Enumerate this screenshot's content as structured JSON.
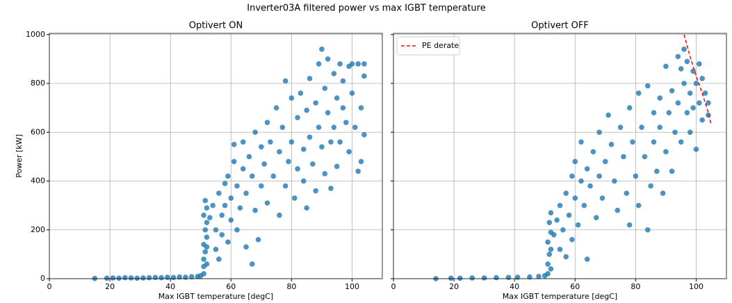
{
  "title": "Inverter03A filtered power vs max IGBT temperature",
  "chart_data": [
    {
      "type": "scatter",
      "title": "Optivert ON",
      "xlabel": "Max IGBT temperature [degC]",
      "ylabel": "Power [kW]",
      "xlim": [
        0,
        110
      ],
      "ylim": [
        0,
        1005
      ],
      "xticks": [
        0,
        20,
        40,
        60,
        80,
        100
      ],
      "yticks": [
        0,
        200,
        400,
        600,
        800,
        1000
      ],
      "grid": true,
      "series": [
        {
          "color": "#1f77b4",
          "x": [
            15,
            19,
            21,
            23,
            25,
            27,
            29,
            31,
            33,
            35,
            37,
            39,
            41,
            43,
            45,
            47,
            49,
            50,
            51,
            51,
            51,
            51.5,
            51,
            52,
            51.5,
            52,
            51,
            52,
            51.5,
            52,
            52,
            53,
            54,
            55,
            55,
            56,
            56,
            57,
            57,
            58,
            58,
            59,
            59,
            60,
            60,
            61,
            61,
            62,
            62,
            63,
            64,
            64,
            65,
            65,
            66,
            67,
            67,
            68,
            68,
            69,
            70,
            70,
            71,
            72,
            72,
            73,
            74,
            75,
            76,
            76,
            77,
            78,
            78,
            79,
            80,
            80,
            81,
            82,
            82,
            83,
            84,
            84,
            85,
            85,
            86,
            86,
            87,
            88,
            88,
            89,
            89,
            90,
            90,
            91,
            91,
            92,
            92,
            93,
            93,
            94,
            94,
            95,
            95,
            96,
            96,
            97,
            97,
            98,
            99,
            99,
            100,
            100,
            101,
            102,
            102,
            103,
            103,
            104,
            104,
            104
          ],
          "values": [
            1,
            2,
            3,
            2,
            4,
            3,
            2,
            3,
            4,
            5,
            4,
            6,
            5,
            7,
            6,
            8,
            9,
            12,
            20,
            50,
            80,
            110,
            140,
            170,
            200,
            230,
            260,
            290,
            320,
            60,
            130,
            250,
            300,
            200,
            120,
            350,
            80,
            260,
            180,
            390,
            300,
            150,
            420,
            240,
            330,
            480,
            550,
            380,
            200,
            290,
            450,
            560,
            130,
            350,
            500,
            60,
            420,
            600,
            280,
            160,
            380,
            540,
            470,
            640,
            310,
            560,
            420,
            700,
            520,
            260,
            620,
            810,
            380,
            480,
            560,
            740,
            330,
            660,
            450,
            760,
            530,
            400,
            690,
            290,
            820,
            580,
            470,
            720,
            360,
            620,
            880,
            940,
            540,
            780,
            430,
            680,
            900,
            560,
            370,
            840,
            620,
            740,
            460,
            880,
            560,
            700,
            810,
            640,
            870,
            520,
            760,
            880,
            620,
            440,
            880,
            700,
            480,
            830,
            590,
            880
          ]
        }
      ]
    },
    {
      "type": "scatter",
      "title": "Optivert OFF",
      "xlabel": "Max IGBT temperature [degC]",
      "sharey": true,
      "xlim": [
        0,
        110
      ],
      "xticks": [
        0,
        20,
        40,
        60,
        80,
        100
      ],
      "grid": true,
      "legend": "upper left",
      "series": [
        {
          "color": "#1f77b4",
          "x": [
            14,
            19,
            22,
            26,
            30,
            34,
            38,
            41,
            45,
            48,
            50,
            51,
            51,
            51.5,
            51,
            52,
            51.5,
            52,
            52,
            52,
            53,
            54,
            55,
            55,
            56,
            57,
            57,
            58,
            59,
            59,
            60,
            60,
            61,
            62,
            62,
            63,
            64,
            64,
            65,
            66,
            67,
            68,
            68,
            69,
            70,
            71,
            72,
            73,
            74,
            75,
            76,
            77,
            78,
            78,
            79,
            80,
            81,
            81,
            82,
            83,
            84,
            84,
            85,
            86,
            86,
            87,
            88,
            88,
            89,
            90,
            90,
            91,
            92,
            92,
            93,
            94,
            94,
            95,
            95,
            96,
            96,
            97,
            97,
            98,
            98,
            99,
            99,
            100,
            100,
            101,
            101,
            102,
            102,
            103,
            104,
            104
          ],
          "values": [
            0,
            2,
            2,
            3,
            3,
            4,
            5,
            6,
            7,
            9,
            12,
            20,
            60,
            100,
            150,
            190,
            230,
            270,
            40,
            120,
            180,
            240,
            120,
            300,
            200,
            350,
            90,
            260,
            420,
            160,
            330,
            480,
            220,
            400,
            560,
            300,
            80,
            450,
            380,
            520,
            250,
            600,
            420,
            330,
            480,
            670,
            550,
            400,
            280,
            620,
            500,
            350,
            700,
            220,
            560,
            420,
            760,
            300,
            620,
            500,
            200,
            790,
            380,
            680,
            560,
            440,
            740,
            620,
            350,
            870,
            520,
            680,
            770,
            440,
            600,
            910,
            720,
            860,
            560,
            940,
            800,
            680,
            890,
            760,
            600,
            850,
            700,
            800,
            530,
            880,
            720,
            820,
            650,
            760,
            720,
            670
          ]
        },
        {
          "type": "line",
          "name": "PE derate",
          "color": "#ff0000",
          "dash": true,
          "x": [
            96,
            98,
            100,
            102,
            104,
            105
          ],
          "values": [
            1000,
            910,
            830,
            760,
            680,
            630
          ]
        }
      ]
    }
  ]
}
